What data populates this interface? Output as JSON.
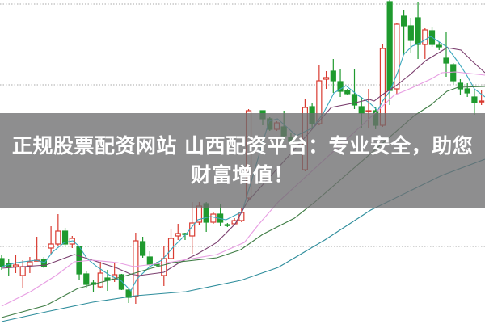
{
  "banner": {
    "line1": "正规股票配资网站 山西配资平台：专业安全，助您",
    "line2": "财富增值！"
  },
  "chart_data": {
    "type": "candlestick",
    "title": "",
    "xlabel": "",
    "ylabel": "",
    "ylim": [
      0,
      40
    ],
    "grid": "dotted horizontal",
    "gridlines": [
      39.5,
      29.5,
      9.5
    ],
    "colors": {
      "up": "#d93a30",
      "down": "#1f9a2e",
      "grid": "#aaaaaa",
      "banner": "#6e6e70"
    },
    "candles": [
      [
        8.0,
        7.0,
        8.4,
        6.6
      ],
      [
        7.4,
        6.9,
        7.9,
        5.9
      ],
      [
        7.0,
        7.2,
        8.5,
        6.2
      ],
      [
        5.9,
        7.0,
        7.8,
        4.4
      ],
      [
        7.1,
        7.6,
        8.2,
        6.2
      ],
      [
        7.7,
        7.8,
        10.7,
        7.7
      ],
      [
        7.9,
        7.0,
        8.2,
        6.8
      ],
      [
        9.3,
        9.8,
        12.0,
        8.6
      ],
      [
        9.8,
        11.4,
        13.5,
        9.5
      ],
      [
        11.4,
        9.8,
        11.8,
        9.6
      ],
      [
        9.8,
        10.5,
        10.8,
        9.3
      ],
      [
        9.5,
        6.1,
        9.6,
        5.4
      ],
      [
        6.1,
        4.8,
        6.4,
        4.4
      ],
      [
        5.0,
        4.8,
        5.3,
        3.8
      ],
      [
        4.5,
        6.2,
        7.6,
        4.3
      ],
      [
        5.6,
        5.3,
        6.6,
        4.0
      ],
      [
        5.4,
        6.0,
        7.5,
        5.1
      ],
      [
        6.0,
        4.2,
        6.1,
        4.1
      ],
      [
        4.1,
        3.2,
        4.3,
        2.5
      ],
      [
        3.3,
        10.2,
        11.2,
        2.4
      ],
      [
        10.1,
        8.4,
        10.7,
        8.1
      ],
      [
        8.2,
        7.3,
        8.9,
        6.9
      ],
      [
        7.3,
        7.2,
        7.6,
        6.9
      ],
      [
        5.9,
        8.0,
        9.5,
        4.6
      ],
      [
        8.0,
        10.5,
        11.6,
        7.9
      ],
      [
        10.8,
        11.1,
        12.3,
        10.3
      ],
      [
        11.1,
        11.0,
        11.2,
        10.3
      ],
      [
        10.8,
        12.4,
        15.0,
        8.6
      ],
      [
        12.5,
        14.5,
        15.0,
        12.2
      ],
      [
        14.8,
        12.5,
        15.0,
        11.3
      ],
      [
        12.5,
        13.5,
        13.8,
        12.3
      ],
      [
        13.5,
        12.5,
        14.8,
        12.0
      ],
      [
        12.2,
        12.1,
        12.4,
        11.9
      ],
      [
        12.3,
        12.7,
        13.0,
        12.1
      ],
      [
        12.7,
        13.7,
        14.2,
        12.5
      ],
      [
        15.5,
        26.3,
        26.5,
        15.3
      ],
      null,
      [
        26.3,
        25.3,
        26.3,
        24.5
      ],
      [
        25.3,
        24.0,
        25.5,
        23.8
      ],
      [
        24.0,
        24.8,
        25.0,
        23.8
      ],
      [
        24.3,
        23.2,
        26.3,
        22.5
      ],
      [
        23.0,
        22.5,
        23.5,
        22.2
      ],
      null,
      [
        19.0,
        26.7,
        27.8,
        18.8
      ],
      [
        26.8,
        24.7,
        27.3,
        24.0
      ],
      [
        24.7,
        30.0,
        32.0,
        24.5
      ],
      [
        30.2,
        30.4,
        31.2,
        29.0
      ],
      [
        31.2,
        30.0,
        32.7,
        28.5
      ],
      [
        29.9,
        28.7,
        31.5,
        28.0
      ],
      [
        28.8,
        28.4,
        29.0,
        28.2
      ],
      [
        28.3,
        27.0,
        31.4,
        26.5
      ],
      [
        26.8,
        26.0,
        28.0,
        24.2
      ],
      [
        26.2,
        26.3,
        29.0,
        24.2
      ],
      [
        26.3,
        24.5,
        26.7,
        24.0
      ],
      [
        24.5,
        34.0,
        34.5,
        24.3
      ],
      [
        39.8,
        28.8,
        40.0,
        27.0
      ],
      [
        29.0,
        37.0,
        37.2,
        28.2
      ],
      [
        38.0,
        36.8,
        38.8,
        33.2
      ],
      [
        36.8,
        35.0,
        37.8,
        33.5
      ],
      [
        37.8,
        34.5,
        39.8,
        32.7
      ],
      [
        34.5,
        36.3,
        36.5,
        32.7
      ],
      [
        36.2,
        34.5,
        36.7,
        34.2
      ],
      [
        34.4,
        34.2,
        34.8,
        33.8
      ],
      [
        32.8,
        32.2,
        36.0,
        30.5
      ],
      [
        32.0,
        30.0,
        32.2,
        29.5
      ],
      [
        29.7,
        29.0,
        30.2,
        28.3
      ],
      [
        29.0,
        28.5,
        29.7,
        28.0
      ],
      [
        28.0,
        27.3,
        28.8,
        25.8
      ],
      [
        27.4,
        27.5,
        28.8,
        27.0
      ]
    ],
    "candle_fields": [
      "open",
      "close",
      "high",
      "low"
    ],
    "moving_averages": [
      {
        "color": "#3aa7bd",
        "points": [
          [
            0,
            7.0
          ],
          [
            2.1,
            7.5
          ],
          [
            4.9,
            7.8
          ],
          [
            6.1,
            7.5
          ],
          [
            7.2,
            8.8
          ],
          [
            8.9,
            10.0
          ],
          [
            10.1,
            10.2
          ],
          [
            11.0,
            9.5
          ],
          [
            12.1,
            8.0
          ],
          [
            13.5,
            7.0
          ],
          [
            15.2,
            6.0
          ],
          [
            17.0,
            5.2
          ],
          [
            18.3,
            4.0
          ],
          [
            19.2,
            5.5
          ],
          [
            21.0,
            7.0
          ],
          [
            22.7,
            7.8
          ],
          [
            24.4,
            9.5
          ],
          [
            26.1,
            11.0
          ],
          [
            27.8,
            12.8
          ],
          [
            29.6,
            13.2
          ],
          [
            31.8,
            12.8
          ],
          [
            34.1,
            13.8
          ],
          [
            37.9,
            25.0
          ],
          [
            39.1,
            25.3
          ],
          [
            41.8,
            23.2
          ],
          [
            44.1,
            24.2
          ],
          [
            45.6,
            26.0
          ],
          [
            47.1,
            28.5
          ],
          [
            48.8,
            29.4
          ],
          [
            50.5,
            28.2
          ],
          [
            52.1,
            27.3
          ],
          [
            53.3,
            26.3
          ],
          [
            54.0,
            27.5
          ],
          [
            55.0,
            28.7
          ],
          [
            56.1,
            31.0
          ],
          [
            57.0,
            33.3
          ],
          [
            58.2,
            34.3
          ],
          [
            59.3,
            34.7
          ],
          [
            60.8,
            35.5
          ],
          [
            63.1,
            34.2
          ],
          [
            64.7,
            32.3
          ],
          [
            65.9,
            30.7
          ],
          [
            67.0,
            29.0
          ],
          [
            68.5,
            28.0
          ]
        ]
      },
      {
        "color": "#7b3f6f",
        "points": [
          [
            0,
            6.8
          ],
          [
            6.3,
            7.2
          ],
          [
            10.3,
            8.5
          ],
          [
            12.9,
            7.8
          ],
          [
            16.4,
            6.8
          ],
          [
            18.2,
            6.1
          ],
          [
            19.5,
            5.9
          ],
          [
            23.0,
            6.3
          ],
          [
            25.2,
            7.5
          ],
          [
            27.8,
            8.6
          ],
          [
            30.5,
            10.0
          ],
          [
            33.1,
            12.3
          ],
          [
            34.8,
            15.0
          ],
          [
            41.0,
            21.0
          ],
          [
            46.7,
            26.7
          ],
          [
            50.2,
            27.3
          ],
          [
            52.1,
            27.7
          ],
          [
            52.8,
            27.5
          ],
          [
            54.0,
            28.3
          ],
          [
            55.9,
            29.4
          ],
          [
            57.8,
            30.7
          ],
          [
            60.1,
            32.5
          ],
          [
            62.0,
            33.5
          ],
          [
            63.1,
            34.1
          ],
          [
            65.1,
            33.8
          ],
          [
            66.6,
            32.5
          ],
          [
            68.5,
            31.0
          ]
        ]
      },
      {
        "color": "#e79de2",
        "points": [
          [
            0,
            2.1
          ],
          [
            4.1,
            3.9
          ],
          [
            7.7,
            5.9
          ],
          [
            10.3,
            7.6
          ],
          [
            12.9,
            7.8
          ],
          [
            16.4,
            7.5
          ],
          [
            18.7,
            7.0
          ],
          [
            21.6,
            7.3
          ],
          [
            24.3,
            7.6
          ],
          [
            30.5,
            8.5
          ],
          [
            34.4,
            10.0
          ],
          [
            36.5,
            12.3
          ],
          [
            39.2,
            15.0
          ],
          [
            53.3,
            26.3
          ],
          [
            55.6,
            28.2
          ],
          [
            57.8,
            29.0
          ],
          [
            60.8,
            30.2
          ],
          [
            62.4,
            31.0
          ],
          [
            64.3,
            31.1
          ],
          [
            68.5,
            30.7
          ]
        ]
      },
      {
        "color": "#3f7d45",
        "points": [
          [
            0,
            0.7
          ],
          [
            6.3,
            2.2
          ],
          [
            10.8,
            4.3
          ],
          [
            17.3,
            5.8
          ],
          [
            21.6,
            6.9
          ],
          [
            24.3,
            7.5
          ],
          [
            30.5,
            8.1
          ],
          [
            33.9,
            9.1
          ],
          [
            37.0,
            11.0
          ],
          [
            41.5,
            13.0
          ],
          [
            44.4,
            15.0
          ],
          [
            58.5,
            25.7
          ],
          [
            60.8,
            27.0
          ],
          [
            63.1,
            28.7
          ],
          [
            64.7,
            29.2
          ],
          [
            68.5,
            29.3
          ]
        ]
      },
      {
        "color": "#2e8d9c",
        "points": [
          [
            0,
            0.2
          ],
          [
            6.3,
            1.4
          ],
          [
            12.9,
            2.6
          ],
          [
            19.0,
            3.4
          ],
          [
            26.1,
            3.9
          ],
          [
            33.9,
            5.3
          ],
          [
            39.2,
            6.9
          ],
          [
            45.8,
            10.3
          ],
          [
            52.3,
            14.0
          ],
          [
            62.4,
            18.3
          ],
          [
            68.5,
            20.3
          ]
        ]
      }
    ]
  }
}
